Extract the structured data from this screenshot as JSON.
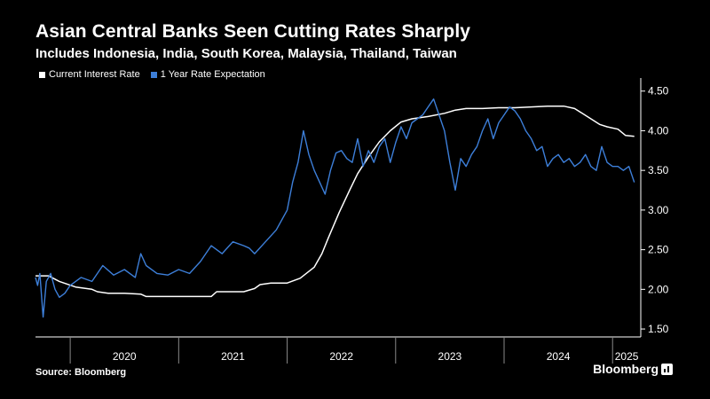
{
  "header": {
    "title": "Asian Central Banks Seen Cutting Rates Sharply",
    "subtitle": "Includes Indonesia, India, South Korea, Malaysia, Thailand, Taiwan"
  },
  "footer": {
    "source": "Source: Bloomberg",
    "brand": "Bloomberg"
  },
  "colors": {
    "background": "#000000",
    "current_rate": "#ffffff",
    "expectation": "#3d7fd9",
    "axis": "#ffffff"
  },
  "chart_data": {
    "type": "line",
    "title": "Asian Central Banks Seen Cutting Rates Sharply",
    "subtitle": "Includes Indonesia, India, South Korea, Malaysia, Thailand, Taiwan",
    "xlabel": "",
    "ylabel": "",
    "x_axis": {
      "type": "time",
      "range": [
        2019.68,
        2025.26
      ],
      "year_labels": [
        "2020",
        "2021",
        "2022",
        "2023",
        "2024",
        "2025"
      ]
    },
    "y_axis": {
      "position": "right",
      "range": [
        1.4,
        4.62
      ],
      "ticks": [
        1.5,
        2.0,
        2.5,
        3.0,
        3.5,
        4.0,
        4.5
      ],
      "tick_labels": [
        "1.50",
        "2.00",
        "2.50",
        "3.00",
        "3.50",
        "4.00",
        "4.50"
      ]
    },
    "grid": false,
    "legend": {
      "placement": "top-left",
      "entries": [
        "Current Interest Rate",
        "1 Year Rate Expectation"
      ]
    },
    "series": [
      {
        "name": "Current Interest Rate",
        "color": "#ffffff",
        "x": [
          2019.68,
          2019.8,
          2019.9,
          2020.05,
          2020.2,
          2020.25,
          2020.35,
          2020.5,
          2020.65,
          2020.7,
          2020.9,
          2021.0,
          2021.3,
          2021.35,
          2021.6,
          2021.7,
          2021.75,
          2021.85,
          2022.0,
          2022.12,
          2022.25,
          2022.32,
          2022.38,
          2022.48,
          2022.58,
          2022.65,
          2022.75,
          2022.85,
          2022.95,
          2023.05,
          2023.15,
          2023.3,
          2023.45,
          2023.55,
          2023.65,
          2023.8,
          2023.95,
          2024.1,
          2024.25,
          2024.4,
          2024.55,
          2024.65,
          2024.72,
          2024.8,
          2024.88,
          2024.95,
          2025.05,
          2025.12,
          2025.2
        ],
        "values": [
          2.17,
          2.17,
          2.1,
          2.03,
          2.0,
          1.97,
          1.95,
          1.95,
          1.94,
          1.91,
          1.91,
          1.91,
          1.91,
          1.97,
          1.97,
          2.01,
          2.06,
          2.08,
          2.08,
          2.14,
          2.28,
          2.45,
          2.65,
          2.97,
          3.26,
          3.46,
          3.67,
          3.86,
          4.0,
          4.11,
          4.15,
          4.18,
          4.22,
          4.26,
          4.28,
          4.28,
          4.29,
          4.29,
          4.3,
          4.31,
          4.31,
          4.28,
          4.22,
          4.15,
          4.08,
          4.05,
          4.02,
          3.94,
          3.93
        ]
      },
      {
        "name": "1 Year Rate Expectation",
        "color": "#3d7fd9",
        "x": [
          2019.68,
          2019.7,
          2019.72,
          2019.75,
          2019.78,
          2019.82,
          2019.86,
          2019.9,
          2019.95,
          2020.0,
          2020.1,
          2020.2,
          2020.3,
          2020.4,
          2020.5,
          2020.6,
          2020.65,
          2020.7,
          2020.8,
          2020.9,
          2021.0,
          2021.1,
          2021.2,
          2021.3,
          2021.4,
          2021.5,
          2021.6,
          2021.65,
          2021.7,
          2021.8,
          2021.9,
          2022.0,
          2022.05,
          2022.1,
          2022.15,
          2022.2,
          2022.25,
          2022.3,
          2022.35,
          2022.4,
          2022.45,
          2022.5,
          2022.55,
          2022.6,
          2022.65,
          2022.7,
          2022.75,
          2022.8,
          2022.85,
          2022.9,
          2022.95,
          2023.0,
          2023.05,
          2023.1,
          2023.15,
          2023.2,
          2023.25,
          2023.3,
          2023.35,
          2023.4,
          2023.45,
          2023.5,
          2023.55,
          2023.6,
          2023.65,
          2023.7,
          2023.75,
          2023.8,
          2023.85,
          2023.9,
          2023.95,
          2024.0,
          2024.05,
          2024.1,
          2024.15,
          2024.2,
          2024.25,
          2024.3,
          2024.35,
          2024.4,
          2024.45,
          2024.5,
          2024.55,
          2024.6,
          2024.65,
          2024.7,
          2024.75,
          2024.8,
          2024.85,
          2024.9,
          2024.95,
          2025.0,
          2025.05,
          2025.1,
          2025.15,
          2025.2
        ],
        "values": [
          2.15,
          2.05,
          2.2,
          1.65,
          2.1,
          2.2,
          2.0,
          1.9,
          1.95,
          2.05,
          2.15,
          2.1,
          2.3,
          2.18,
          2.25,
          2.15,
          2.45,
          2.3,
          2.2,
          2.18,
          2.25,
          2.2,
          2.35,
          2.55,
          2.45,
          2.6,
          2.55,
          2.52,
          2.45,
          2.6,
          2.75,
          3.0,
          3.35,
          3.6,
          4.0,
          3.7,
          3.5,
          3.35,
          3.2,
          3.5,
          3.72,
          3.75,
          3.65,
          3.6,
          3.9,
          3.55,
          3.75,
          3.6,
          3.8,
          3.9,
          3.6,
          3.85,
          4.05,
          3.9,
          4.1,
          4.15,
          4.2,
          4.3,
          4.4,
          4.2,
          4.0,
          3.6,
          3.25,
          3.65,
          3.55,
          3.7,
          3.8,
          4.0,
          4.15,
          3.9,
          4.1,
          4.2,
          4.3,
          4.25,
          4.15,
          4.0,
          3.9,
          3.75,
          3.8,
          3.55,
          3.65,
          3.7,
          3.6,
          3.65,
          3.55,
          3.6,
          3.7,
          3.55,
          3.5,
          3.8,
          3.6,
          3.55,
          3.55,
          3.5,
          3.55,
          3.35
        ]
      }
    ]
  }
}
